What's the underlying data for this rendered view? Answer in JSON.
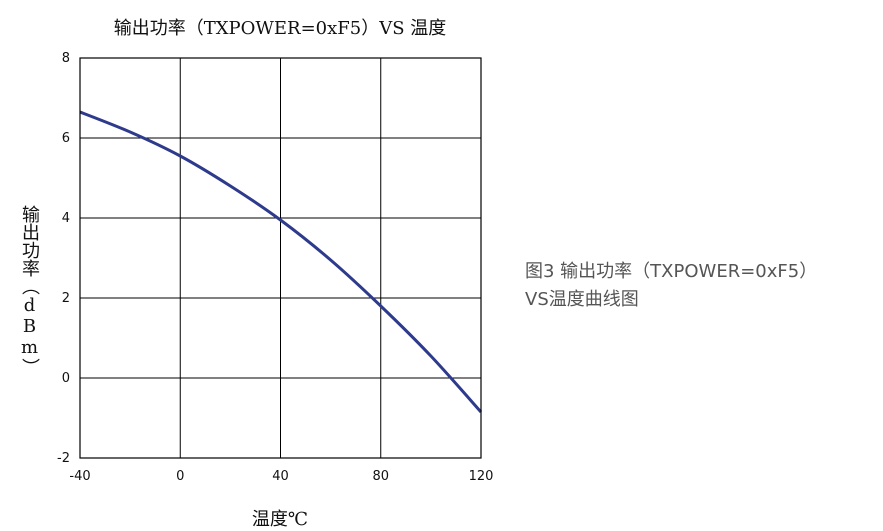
{
  "chart_data": {
    "type": "line",
    "title": "输出功率（TXPOWER=0xF5）VS 温度",
    "xlabel": "温度℃",
    "ylabel": "输出功率（dBm）",
    "xlim": [
      -40,
      120
    ],
    "ylim": [
      -2,
      8
    ],
    "x_ticks": [
      "-40",
      "0",
      "40",
      "80",
      "120"
    ],
    "y_ticks": [
      "8",
      "6",
      "4",
      "2",
      "0",
      "-2"
    ],
    "grid": true,
    "series": [
      {
        "color": "#2e3a8c",
        "x": [
          -40,
          -20,
          0,
          20,
          40,
          60,
          80,
          100,
          120
        ],
        "y": [
          6.65,
          6.15,
          5.55,
          4.8,
          3.95,
          2.95,
          1.8,
          0.55,
          -0.85
        ]
      }
    ]
  },
  "caption": {
    "line1": "图3 输出功率（TXPOWER=0xF5）",
    "line2": "VS温度曲线图"
  }
}
